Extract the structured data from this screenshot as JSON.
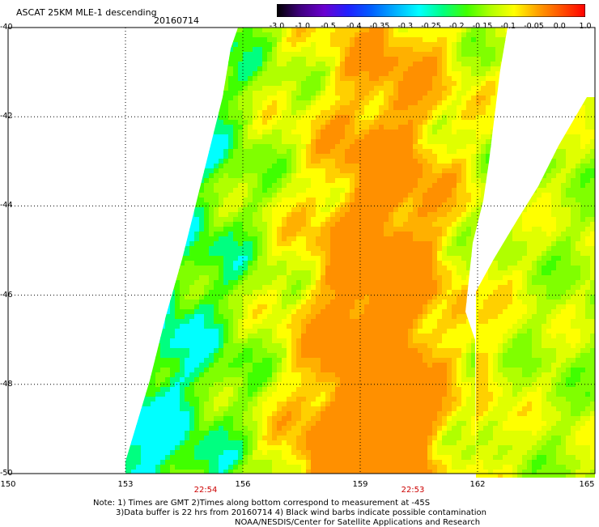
{
  "header": {
    "title": "ASCAT 25KM MLE-1 descending",
    "date": "20160714"
  },
  "colorbar": {
    "labels": [
      "-3.0",
      "-1.0",
      "-0.5",
      "-0.4",
      "-0.35",
      "-0.3",
      "-0.25",
      "-0.2",
      "-0.15",
      "-0.1",
      "-0.05",
      "0.0",
      "1.0"
    ],
    "colors": [
      "#000000",
      "#400080",
      "#6a00d0",
      "#2020ff",
      "#0060ff",
      "#00b0ff",
      "#00ffff",
      "#00ff80",
      "#40ff00",
      "#b0ff00",
      "#ffff00",
      "#ffa000",
      "#ff5000",
      "#ff0000"
    ]
  },
  "axes": {
    "lat_labels": [
      "-40",
      "-42",
      "-44",
      "-46",
      "-48",
      "-50"
    ],
    "lon_labels": [
      "150",
      "153",
      "156",
      "159",
      "162",
      "165"
    ],
    "lon_range": [
      150,
      165
    ],
    "lat_range": [
      -40,
      -50
    ]
  },
  "pass_times": [
    "22:54",
    "22:53"
  ],
  "notes": {
    "line1": "Note: 1) Times are GMT  2)Times along bottom correspond to measurement at -45S",
    "line2": "3)Data buffer is 22 hrs from 20160714   4) Black wind barbs indicate possible contamination",
    "line3": "NOAA/NESDIS/Center for Satellite Applications and Research"
  }
}
